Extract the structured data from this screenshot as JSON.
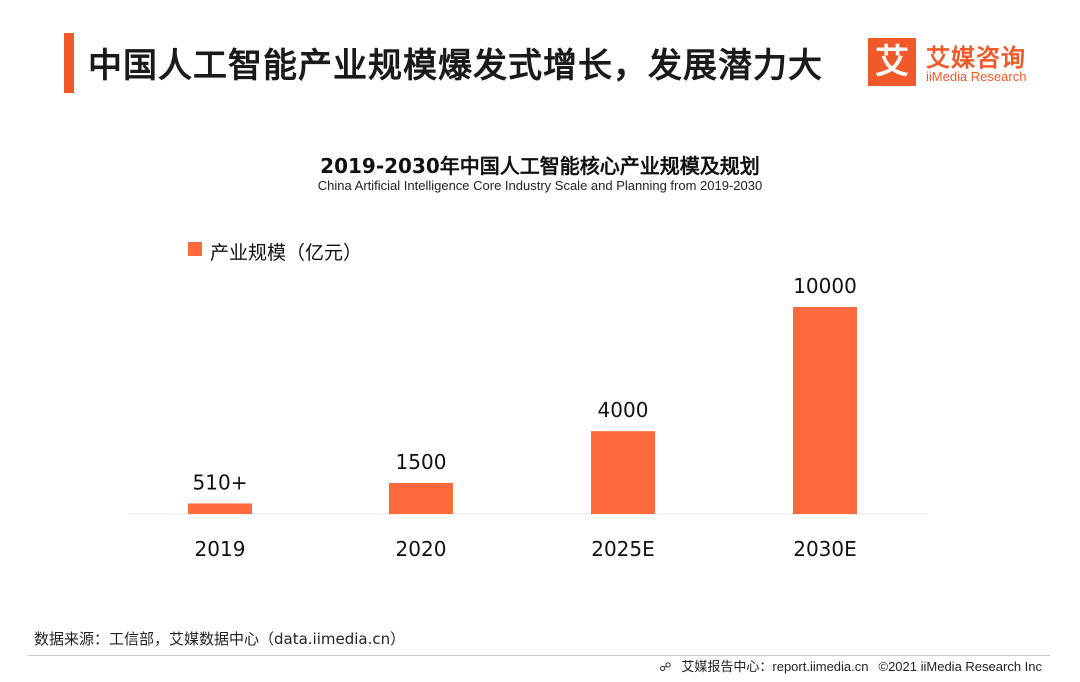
{
  "header": {
    "title": "中国人工智能产业规模爆发式增长，发展潜力大",
    "logo_mark": "艾",
    "logo_cn": "艾媒咨询",
    "logo_en": "iiMedia Research",
    "accent_color": "#f05a2a"
  },
  "chart_data": {
    "type": "bar",
    "title": "2019-2030年中国人工智能核心产业规模及规划",
    "subtitle": "China Artificial Intelligence Core Industry Scale and Planning from 2019-2030",
    "categories": [
      "2019",
      "2020",
      "2025E",
      "2030E"
    ],
    "values": [
      510,
      1500,
      4000,
      10000
    ],
    "value_labels": [
      "510+",
      "1500",
      "4000",
      "10000"
    ],
    "series": [
      {
        "name": "产业规模（亿元）",
        "values": [
          510,
          1500,
          4000,
          10000
        ]
      }
    ],
    "legend_position": "top-left",
    "grid": false,
    "ylim": [
      0,
      10000
    ],
    "bar_color": "#fa6a3c"
  },
  "footer": {
    "source": "数据来源：工信部，艾媒数据中心（data.iimedia.cn）",
    "report_icon": "report-icon",
    "report": "艾媒报告中心：report.iimedia.cn",
    "copyright": "©2021  iiMedia Research  Inc"
  }
}
